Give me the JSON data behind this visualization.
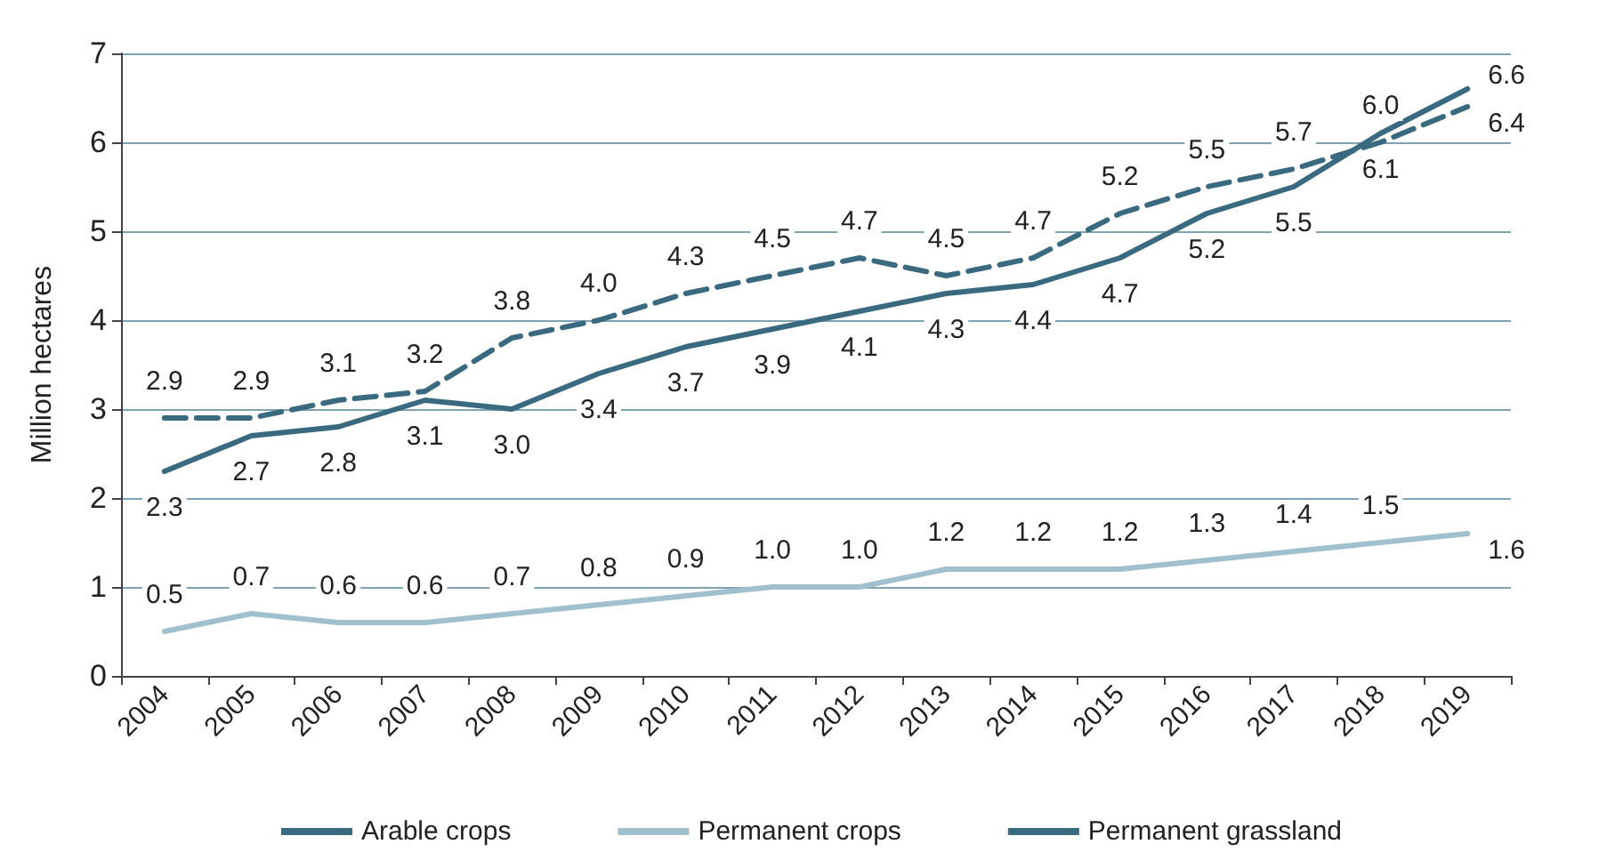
{
  "chart_data": {
    "type": "line",
    "ylabel": "Million hectares",
    "categories": [
      "2004",
      "2005",
      "2006",
      "2007",
      "2008",
      "2009",
      "2010",
      "2011",
      "2012",
      "2013",
      "2014",
      "2015",
      "2016",
      "2017",
      "2018",
      "2019"
    ],
    "series": [
      {
        "name": "Arable crops",
        "color": "#3a6a80",
        "line_style": "solid",
        "values": [
          2.3,
          2.7,
          2.8,
          3.1,
          3.0,
          3.4,
          3.7,
          3.9,
          4.1,
          4.3,
          4.4,
          4.7,
          5.2,
          5.5,
          6.1,
          6.6
        ],
        "value_labels": [
          "2.3",
          "2.7",
          "2.8",
          "3.1",
          "3.0",
          "3.4",
          "3.7",
          "3.9",
          "4.1",
          "4.3",
          "4.4",
          "4.7",
          "5.2",
          "5.5",
          "6.1",
          "6.6"
        ]
      },
      {
        "name": "Permanent crops",
        "color": "#9fc0cc",
        "line_style": "solid",
        "values": [
          0.5,
          0.7,
          0.6,
          0.6,
          0.7,
          0.8,
          0.9,
          1.0,
          1.0,
          1.2,
          1.2,
          1.2,
          1.3,
          1.4,
          1.5,
          1.6
        ],
        "value_labels": [
          "0.5",
          "0.7",
          "0.6",
          "0.6",
          "0.7",
          "0.8",
          "0.9",
          "1.0",
          "1.0",
          "1.2",
          "1.2",
          "1.2",
          "1.3",
          "1.4",
          "1.5",
          "1.6"
        ]
      },
      {
        "name": "Permanent grassland",
        "color": "#3a6a80",
        "line_style": "dashed",
        "values": [
          2.9,
          2.9,
          3.1,
          3.2,
          3.8,
          4.0,
          4.3,
          4.5,
          4.7,
          4.5,
          4.7,
          5.2,
          5.5,
          5.7,
          6.0,
          6.4
        ],
        "value_labels": [
          "2.9",
          "2.9",
          "3.1",
          "3.2",
          "3.8",
          "4.0",
          "4.3",
          "4.5",
          "4.7",
          "4.5",
          "4.7",
          "5.2",
          "5.5",
          "5.7",
          "6.0",
          "6.4"
        ]
      }
    ],
    "ylim": [
      0,
      7
    ],
    "yticks": [
      0,
      1,
      2,
      3,
      4,
      5,
      6,
      7
    ],
    "grid": "y",
    "legend": "bottom",
    "marker": "none"
  }
}
